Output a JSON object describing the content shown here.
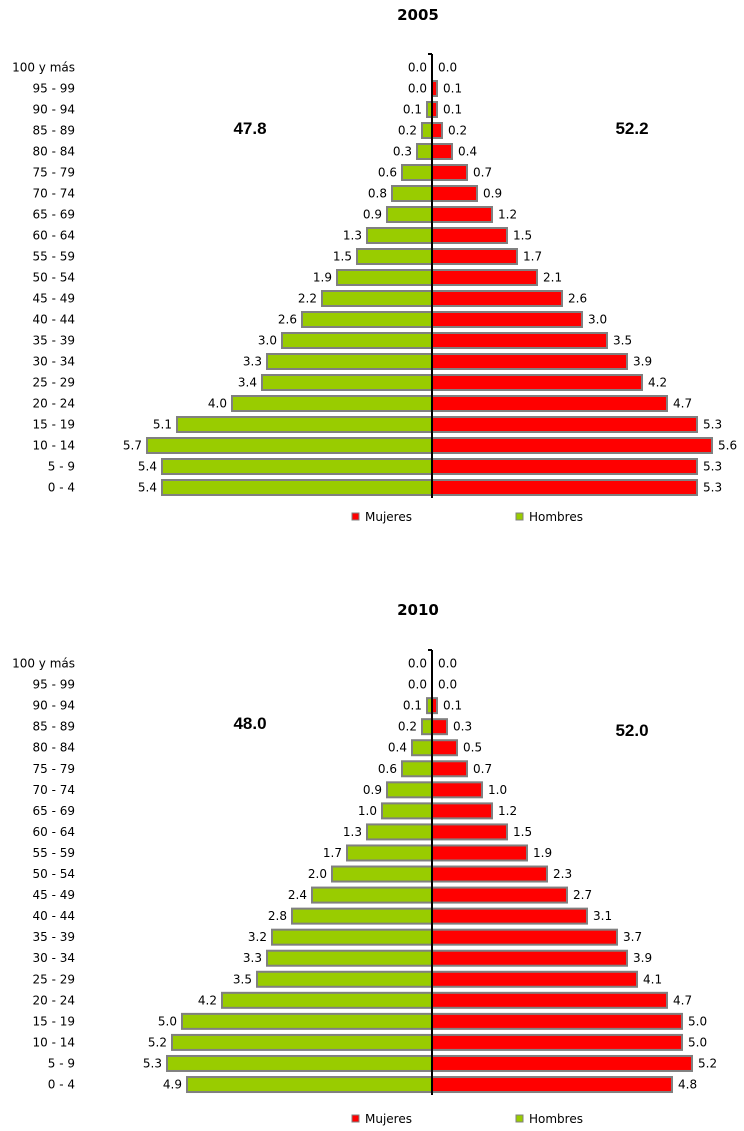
{
  "chart_data": [
    {
      "type": "bar",
      "orientation": "horizontal-diverging",
      "title": "2005",
      "categories": [
        "100 y más",
        "95 - 99",
        "90 - 94",
        "85 - 89",
        "80 - 84",
        "75 - 79",
        "70 - 74",
        "65 - 69",
        "60 - 64",
        "55 - 59",
        "50 - 54",
        "45 - 49",
        "40 - 44",
        "35 - 39",
        "30 - 34",
        "25 - 29",
        "20 - 24",
        "15 - 19",
        "10 - 14",
        "5 - 9",
        "0 - 4"
      ],
      "series": [
        {
          "name": "Hombres",
          "side": "left",
          "color": "#99CC00",
          "values": [
            0.0,
            0.0,
            0.1,
            0.2,
            0.3,
            0.6,
            0.8,
            0.9,
            1.3,
            1.5,
            1.9,
            2.2,
            2.6,
            3.0,
            3.3,
            3.4,
            4.0,
            5.1,
            5.7,
            5.4,
            5.4
          ],
          "labels": [
            "0.0",
            "0.0",
            "0.1",
            "0.2",
            "0.3",
            "0.6",
            "0.8",
            "0.9",
            "1.3",
            "1.5",
            "1.9",
            "2.2",
            "2.6",
            "3.0",
            "3.3",
            "3.4",
            "4.0",
            "5.1",
            "5.7",
            "5.4",
            "5.4"
          ],
          "total": "47.8"
        },
        {
          "name": "Mujeres",
          "side": "right",
          "color": "#FF0000",
          "values": [
            0.0,
            0.1,
            0.1,
            0.2,
            0.4,
            0.7,
            0.9,
            1.2,
            1.5,
            1.7,
            2.1,
            2.6,
            3.0,
            3.5,
            3.9,
            4.2,
            4.7,
            5.3,
            5.6,
            5.3,
            5.3
          ],
          "labels": [
            "0.0",
            "0.1",
            "0.1",
            "0.2",
            "0.4",
            "0.7",
            "0.9",
            "1.2",
            "1.5",
            "1.7",
            "2.1",
            "2.6",
            "3.0",
            "3.5",
            "3.9",
            "4.2",
            "4.7",
            "5.3",
            "5.6",
            "5.3",
            "5.3"
          ],
          "total": "52.2"
        }
      ],
      "legend": [
        "Mujeres",
        "Hombres"
      ],
      "legend_position": "bottom",
      "grid": false
    },
    {
      "type": "bar",
      "orientation": "horizontal-diverging",
      "title": "2010",
      "categories": [
        "100 y más",
        "95 - 99",
        "90 - 94",
        "85 - 89",
        "80 - 84",
        "75 - 79",
        "70 - 74",
        "65 - 69",
        "60 - 64",
        "55 - 59",
        "50 - 54",
        "45 - 49",
        "40 - 44",
        "35 - 39",
        "30 - 34",
        "25 - 29",
        "20 - 24",
        "15 - 19",
        "10 - 14",
        "5 - 9",
        "0 - 4"
      ],
      "series": [
        {
          "name": "Hombres",
          "side": "left",
          "color": "#99CC00",
          "values": [
            0.0,
            0.0,
            0.1,
            0.2,
            0.4,
            0.6,
            0.9,
            1.0,
            1.3,
            1.7,
            2.0,
            2.4,
            2.8,
            3.2,
            3.3,
            3.5,
            4.2,
            5.0,
            5.2,
            5.3,
            4.9
          ],
          "labels": [
            "0.0",
            "0.0",
            "0.1",
            "0.2",
            "0.4",
            "0.6",
            "0.9",
            "1.0",
            "1.3",
            "1.7",
            "2.0",
            "2.4",
            "2.8",
            "3.2",
            "3.3",
            "3.5",
            "4.2",
            "5.0",
            "5.2",
            "5.3",
            "4.9"
          ],
          "total": "48.0"
        },
        {
          "name": "Mujeres",
          "side": "right",
          "color": "#FF0000",
          "values": [
            0.0,
            0.0,
            0.1,
            0.3,
            0.5,
            0.7,
            1.0,
            1.2,
            1.5,
            1.9,
            2.3,
            2.7,
            3.1,
            3.7,
            3.9,
            4.1,
            4.7,
            5.0,
            5.0,
            5.2,
            4.8
          ],
          "labels": [
            "0.0",
            "0.0",
            "0.1",
            "0.3",
            "0.5",
            "0.7",
            "1.0",
            "1.2",
            "1.5",
            "1.9",
            "2.3",
            "2.7",
            "3.1",
            "3.7",
            "3.9",
            "4.1",
            "4.7",
            "5.0",
            "5.0",
            "5.2",
            "4.8"
          ],
          "total": "52.0"
        }
      ],
      "legend": [
        "Mujeres",
        "Hombres"
      ],
      "legend_position": "bottom",
      "grid": false
    }
  ]
}
